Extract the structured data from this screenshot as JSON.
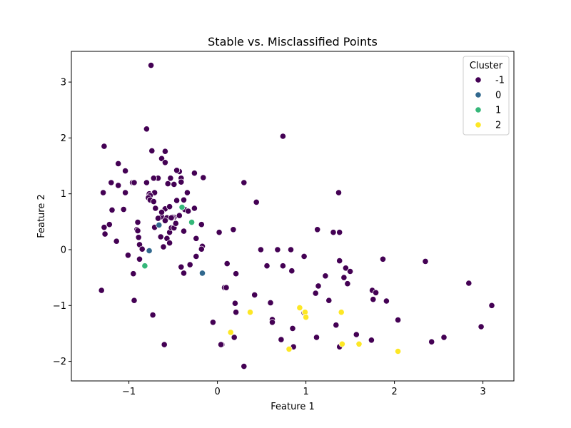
{
  "chart_data": {
    "type": "scatter",
    "title": "Stable vs. Misclassified Points",
    "xlabel": "Feature 1",
    "ylabel": "Feature 2",
    "xlim": [
      -1.65,
      3.35
    ],
    "ylim": [
      -2.35,
      3.55
    ],
    "xticks": [
      -1,
      0,
      1,
      2,
      3
    ],
    "yticks": [
      -2,
      -1,
      0,
      1,
      2,
      3
    ],
    "xtick_labels": [
      "−1",
      "0",
      "1",
      "2",
      "3"
    ],
    "ytick_labels": [
      "−2",
      "−1",
      "0",
      "1",
      "2",
      "3"
    ],
    "grid": false,
    "legend": {
      "title": "Cluster",
      "placement": "top-right",
      "entries": [
        "-1",
        "0",
        "1",
        "2"
      ]
    },
    "series": [
      {
        "name": "-1",
        "color": "#440154",
        "x": [
          -0.75,
          -0.8,
          0.74,
          -1.28,
          -0.74,
          -0.59,
          -0.63,
          -1.12,
          -1.2,
          -0.43,
          -1.04,
          -0.8,
          -0.67,
          -0.59,
          -0.46,
          -0.72,
          -0.53,
          -0.41,
          -0.26,
          -0.16,
          -0.96,
          -1.04,
          -1.12,
          -0.56,
          -0.49,
          -0.41,
          -0.34,
          -0.71,
          -0.77,
          -0.76,
          -0.78,
          -0.76,
          -0.72,
          -1.29,
          -1.22,
          -1.06,
          -0.94,
          -1.19,
          -0.46,
          -0.59,
          -0.63,
          -0.7,
          -0.49,
          -0.37,
          -0.63,
          -0.51,
          -0.57,
          -0.54,
          -0.43,
          -0.33,
          -0.26,
          -0.18,
          -1.28,
          -1.27,
          -1.14,
          -0.91,
          -0.9,
          -0.9,
          -0.71,
          -0.67,
          -0.59,
          -0.54,
          -0.52,
          -0.49,
          -0.38,
          -0.24,
          -0.17,
          -0.89,
          -0.88,
          -0.85,
          -0.57,
          -0.54,
          -0.61,
          -0.64,
          -0.47,
          -0.52,
          -0.38,
          -0.24,
          -0.18,
          -0.95,
          -1.01,
          -0.88,
          -1.31,
          -0.73,
          -0.94,
          -0.6,
          -0.41,
          -0.38,
          -0.31,
          0.3,
          0.44,
          0.02,
          0.18,
          1.13,
          1.31,
          1.38,
          0.49,
          0.68,
          0.83,
          0.98,
          0.11,
          0.21,
          0.56,
          0.74,
          0.84,
          1.37,
          1.45,
          1.5,
          1.87,
          2.35,
          1.22,
          1.38,
          1.11,
          1.14,
          1.43,
          1.26,
          1.47,
          1.75,
          1.79,
          1.76,
          1.91,
          2.84,
          3.1,
          0.08,
          0.1,
          0.05,
          0.42,
          0.21,
          0.2,
          0.6,
          0.62,
          0.62,
          0.98,
          0.72,
          0.85,
          0.86,
          1.12,
          1.38,
          1.34,
          1.57,
          1.74,
          2.04,
          2.42,
          2.56,
          2.98,
          -0.05,
          0.04,
          0.19,
          0.3
        ],
        "y": [
          3.3,
          2.16,
          2.03,
          1.85,
          1.77,
          1.76,
          1.63,
          1.54,
          1.2,
          1.4,
          1.41,
          1.2,
          1.28,
          1.56,
          1.42,
          1.28,
          1.28,
          1.28,
          1.37,
          1.29,
          1.2,
          1.02,
          1.15,
          1.18,
          1.17,
          1.21,
          1.02,
          1.02,
          1.0,
          0.97,
          0.93,
          0.89,
          0.86,
          1.02,
          0.45,
          0.72,
          1.2,
          0.71,
          0.88,
          0.73,
          0.59,
          0.74,
          0.58,
          0.72,
          0.67,
          0.58,
          0.57,
          0.77,
          0.61,
          0.69,
          0.74,
          0.45,
          0.4,
          0.28,
          0.15,
          0.36,
          0.34,
          0.49,
          0.4,
          0.56,
          0.52,
          0.31,
          0.39,
          0.39,
          0.33,
          0.2,
          0.06,
          0.22,
          0.09,
          0.01,
          0.2,
          0.12,
          0.05,
          0.23,
          0.47,
          0.57,
          0.89,
          -0.12,
          0.01,
          -0.43,
          -0.1,
          -0.17,
          -0.73,
          -1.17,
          -0.91,
          -1.7,
          -0.31,
          -0.42,
          -0.27,
          1.2,
          0.85,
          0.31,
          0.36,
          0.36,
          0.31,
          0.31,
          0.0,
          0.0,
          0.0,
          -0.12,
          -0.25,
          -0.43,
          -0.29,
          -0.29,
          -0.38,
          1.02,
          -0.33,
          -0.39,
          -0.17,
          -0.21,
          -0.47,
          -0.2,
          -0.78,
          -0.65,
          -0.5,
          -0.91,
          -0.61,
          -0.73,
          -0.77,
          -0.89,
          -0.92,
          -0.6,
          -1.0,
          -0.68,
          -0.68,
          -1.7,
          -0.81,
          -1.12,
          -0.96,
          -0.95,
          -1.25,
          -1.3,
          -1.13,
          -1.61,
          -1.41,
          -1.74,
          -1.57,
          -1.74,
          -1.35,
          -1.52,
          -1.62,
          -1.26,
          -1.65,
          -1.57,
          -1.38,
          -1.3,
          -1.7,
          -1.57,
          -2.09
        ]
      },
      {
        "name": "0",
        "color": "#31688e",
        "x": [
          -0.66,
          -0.77,
          -0.17
        ],
        "y": [
          0.44,
          -0.02,
          -0.42
        ]
      },
      {
        "name": "1",
        "color": "#35b779",
        "x": [
          -0.4,
          -0.29,
          -0.82
        ],
        "y": [
          0.76,
          0.49,
          -0.29
        ]
      },
      {
        "name": "2",
        "color": "#fde725",
        "x": [
          0.37,
          0.15,
          0.93,
          0.99,
          1.0,
          1.4,
          1.41,
          0.81,
          1.6,
          2.04
        ],
        "y": [
          -1.12,
          -1.48,
          -1.04,
          -1.12,
          -1.21,
          -1.12,
          -1.69,
          -1.78,
          -1.69,
          -1.82
        ]
      }
    ]
  }
}
